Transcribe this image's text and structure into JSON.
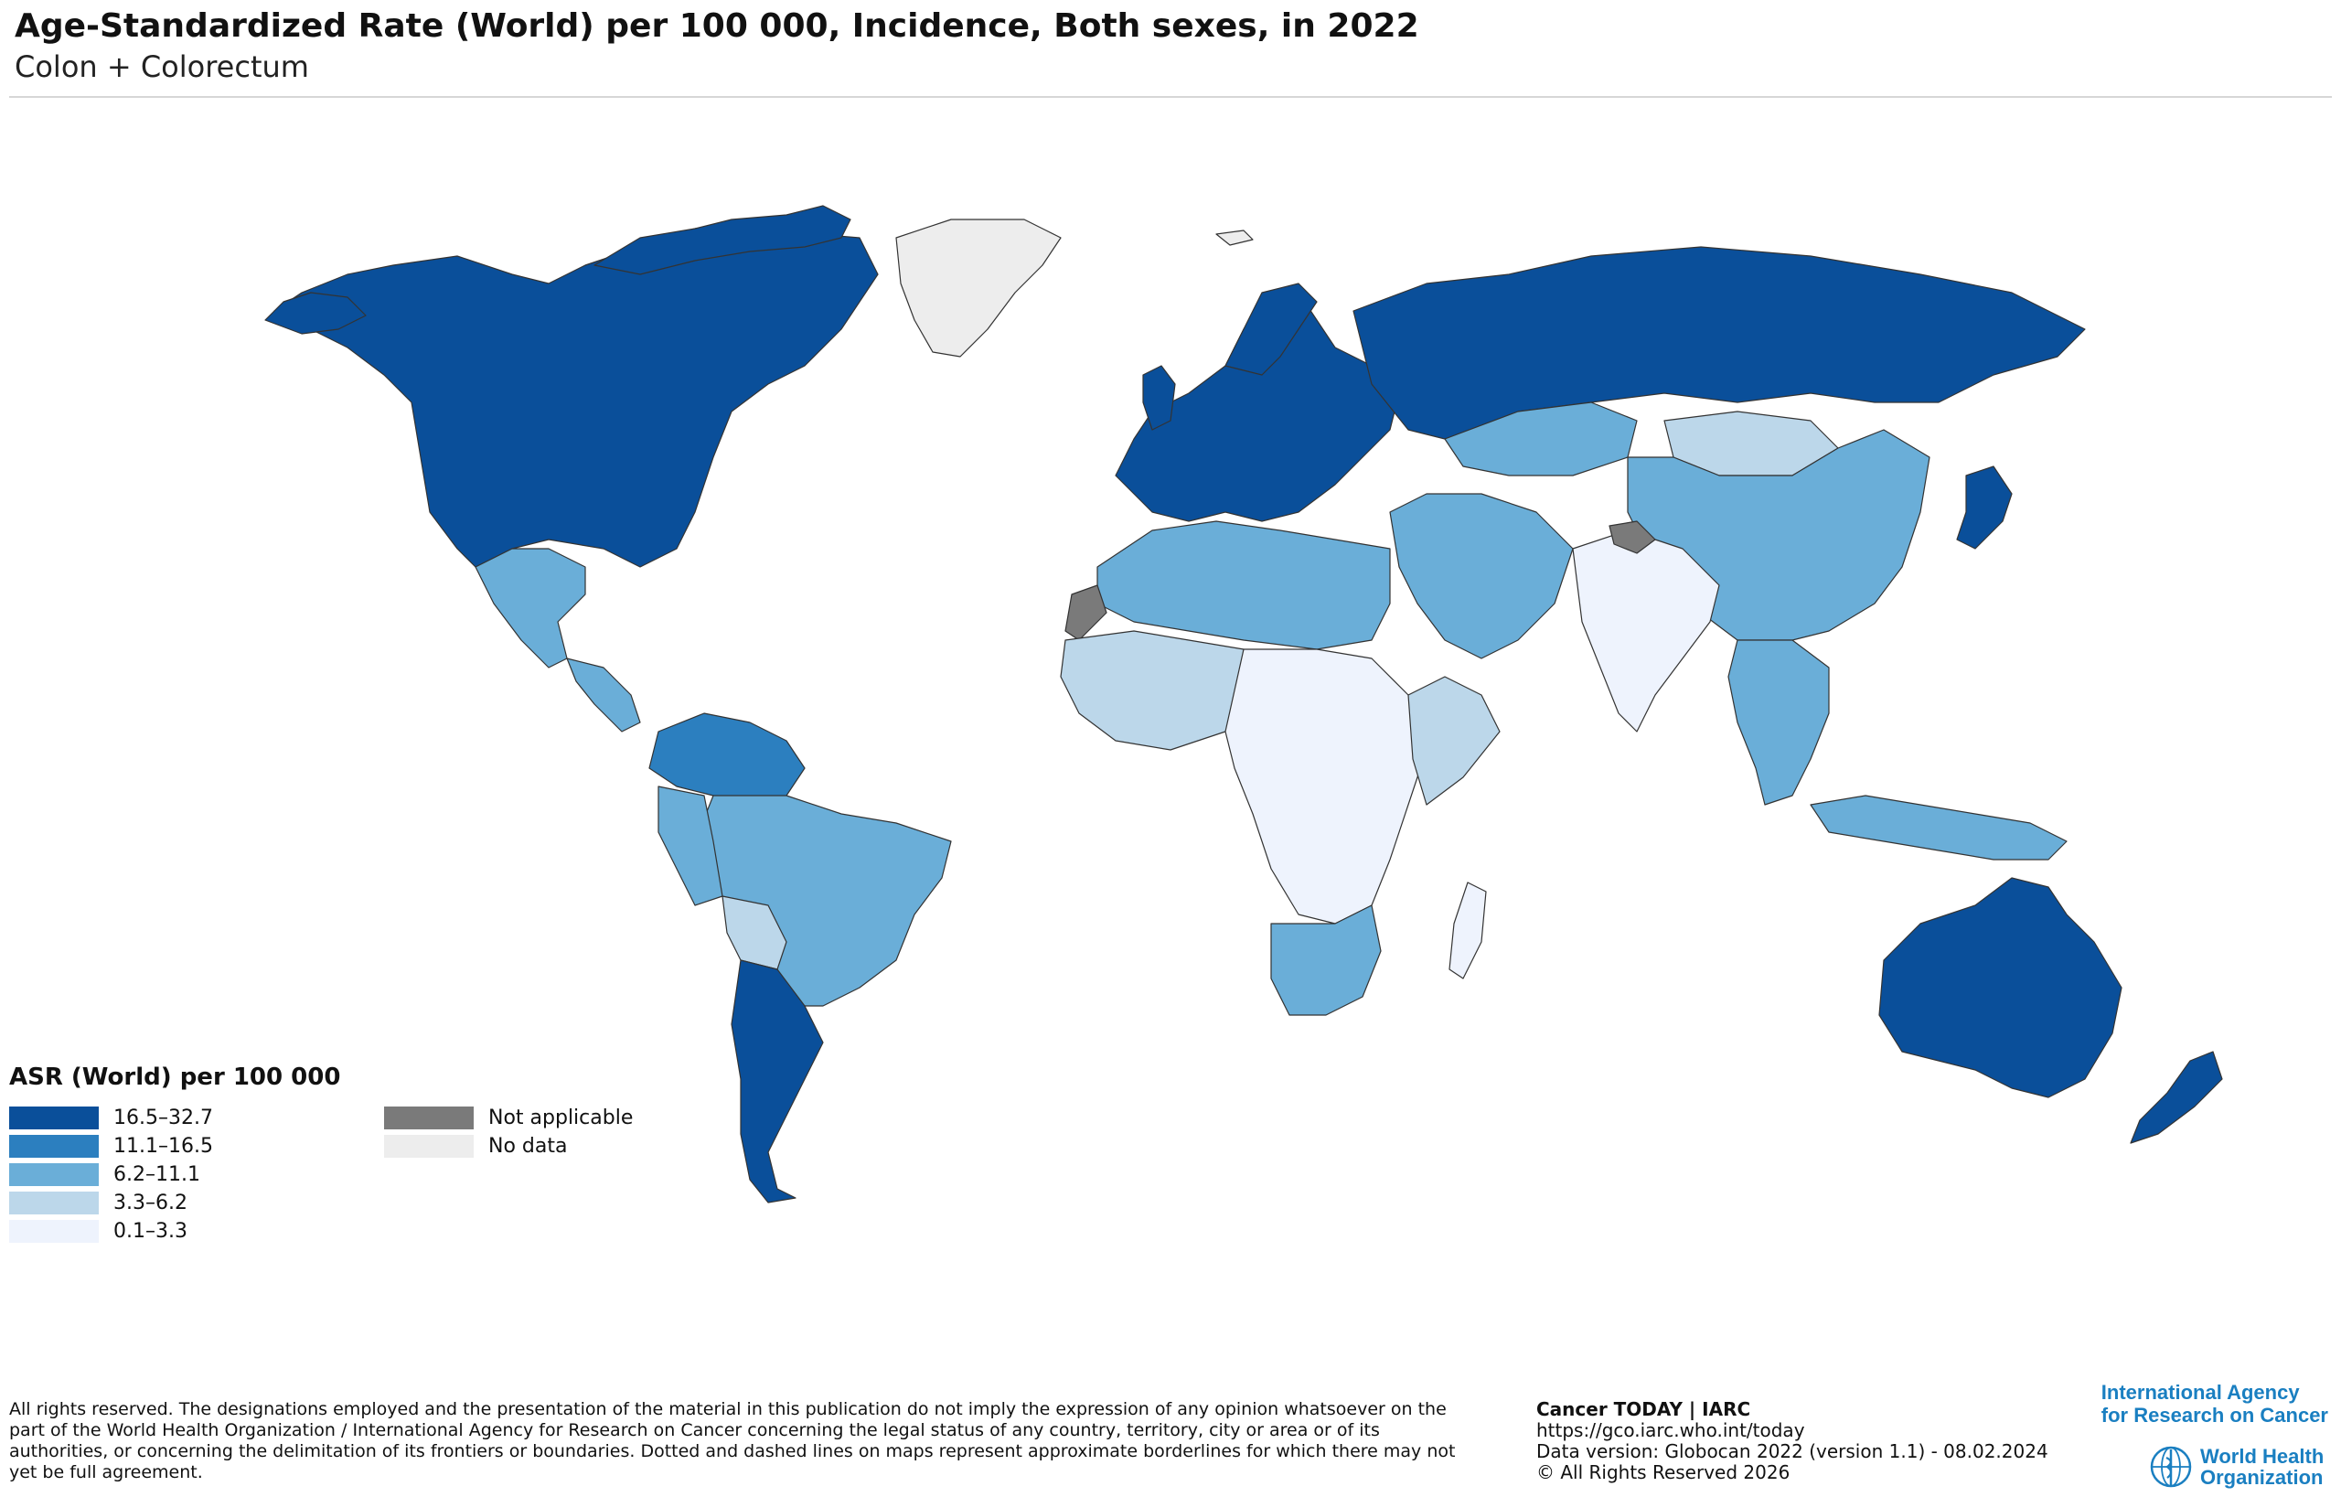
{
  "title": "Age-Standardized Rate (World) per 100 000, Incidence, Both sexes, in 2022",
  "subtitle": "Colon + Colorectum",
  "legend": {
    "title": "ASR (World) per 100 000",
    "classes": [
      {
        "label": "16.5–32.7",
        "color": "#0a4f9a"
      },
      {
        "label": "11.1–16.5",
        "color": "#2c7fbf"
      },
      {
        "label": "6.2–11.1",
        "color": "#6aaed8"
      },
      {
        "label": "3.3–6.2",
        "color": "#bcd7ea"
      },
      {
        "label": "0.1–3.3",
        "color": "#eef3fd"
      }
    ],
    "extra": [
      {
        "label": "Not applicable",
        "color": "#7a7a7a"
      },
      {
        "label": "No data",
        "color": "#ededed"
      }
    ]
  },
  "disclaimer": "All rights reserved. The designations employed and the presentation of the material in this publication do not imply the expression of any opinion whatsoever on the part of the World Health Organization / International Agency for Research on Cancer concerning the legal status of any country, territory, city or area or of its authorities, or concerning the delimitation of its frontiers or boundaries. Dotted and dashed lines on maps represent approximate borderlines for which there may not yet be full agreement.",
  "credits": {
    "line1": "Cancer TODAY | IARC",
    "line2": "https://gco.iarc.who.int/today",
    "line3": "Data version: Globocan 2022 (version 1.1) - 08.02.2024",
    "line4": "© All Rights Reserved 2026"
  },
  "logos": {
    "iarc_line1": "International Agency",
    "iarc_line2": "for Research on Cancer",
    "who_line1": "World Health",
    "who_line2": "Organization"
  },
  "regions": [
    {
      "name": "North America",
      "class": 0
    },
    {
      "name": "Greenland",
      "class": "no-data"
    },
    {
      "name": "Europe",
      "class": 0
    },
    {
      "name": "Russia",
      "class": 0
    },
    {
      "name": "Japan",
      "class": 0
    },
    {
      "name": "Australia",
      "class": 0
    },
    {
      "name": "New Zealand",
      "class": 0
    },
    {
      "name": "Argentina / Chile / Uruguay",
      "class": 0
    },
    {
      "name": "Northern South America",
      "class": 1
    },
    {
      "name": "Brazil",
      "class": 2
    },
    {
      "name": "Mexico",
      "class": 2
    },
    {
      "name": "China",
      "class": 2
    },
    {
      "name": "Kazakhstan",
      "class": 2
    },
    {
      "name": "Middle East",
      "class": 2
    },
    {
      "name": "North Africa",
      "class": 2
    },
    {
      "name": "Southern Africa",
      "class": 2
    },
    {
      "name": "Southeast Asia",
      "class": 2
    },
    {
      "name": "Mongolia",
      "class": 3
    },
    {
      "name": "Bolivia",
      "class": 3
    },
    {
      "name": "West Africa",
      "class": 3
    },
    {
      "name": "India",
      "class": 4
    },
    {
      "name": "Central Africa",
      "class": 4
    },
    {
      "name": "Madagascar",
      "class": 4
    },
    {
      "name": "Western Sahara",
      "class": "not-applicable"
    },
    {
      "name": "Kashmir",
      "class": "not-applicable"
    }
  ]
}
